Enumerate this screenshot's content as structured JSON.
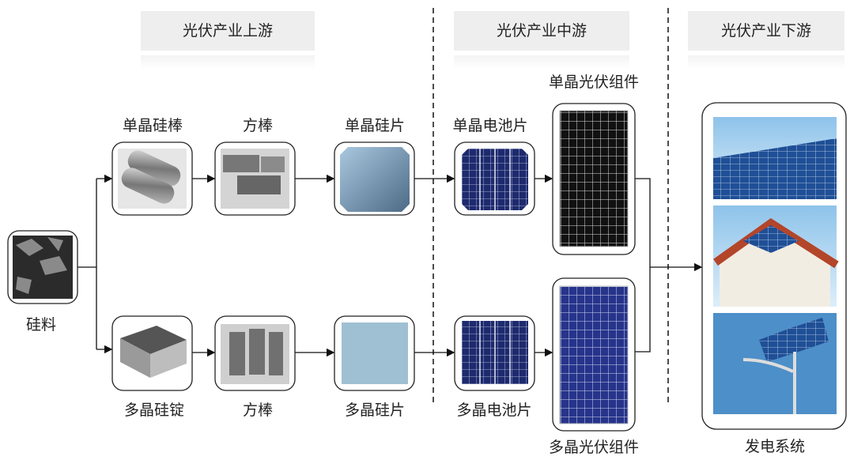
{
  "headers": [
    "光伏产业上游",
    "光伏产业中游",
    "光伏产业下游"
  ],
  "nodes": [
    {
      "label": "硅料"
    },
    {
      "label": "单晶硅棒"
    },
    {
      "label": "方棒"
    },
    {
      "label": "单晶硅片"
    },
    {
      "label": "单晶电池片"
    },
    {
      "label": "单晶光伏组件"
    },
    {
      "label": "多晶硅锭"
    },
    {
      "label": "方棒"
    },
    {
      "label": "多晶硅片"
    },
    {
      "label": "多晶电池片"
    },
    {
      "label": "多晶光伏组件"
    },
    {
      "label": "发电系统"
    }
  ]
}
